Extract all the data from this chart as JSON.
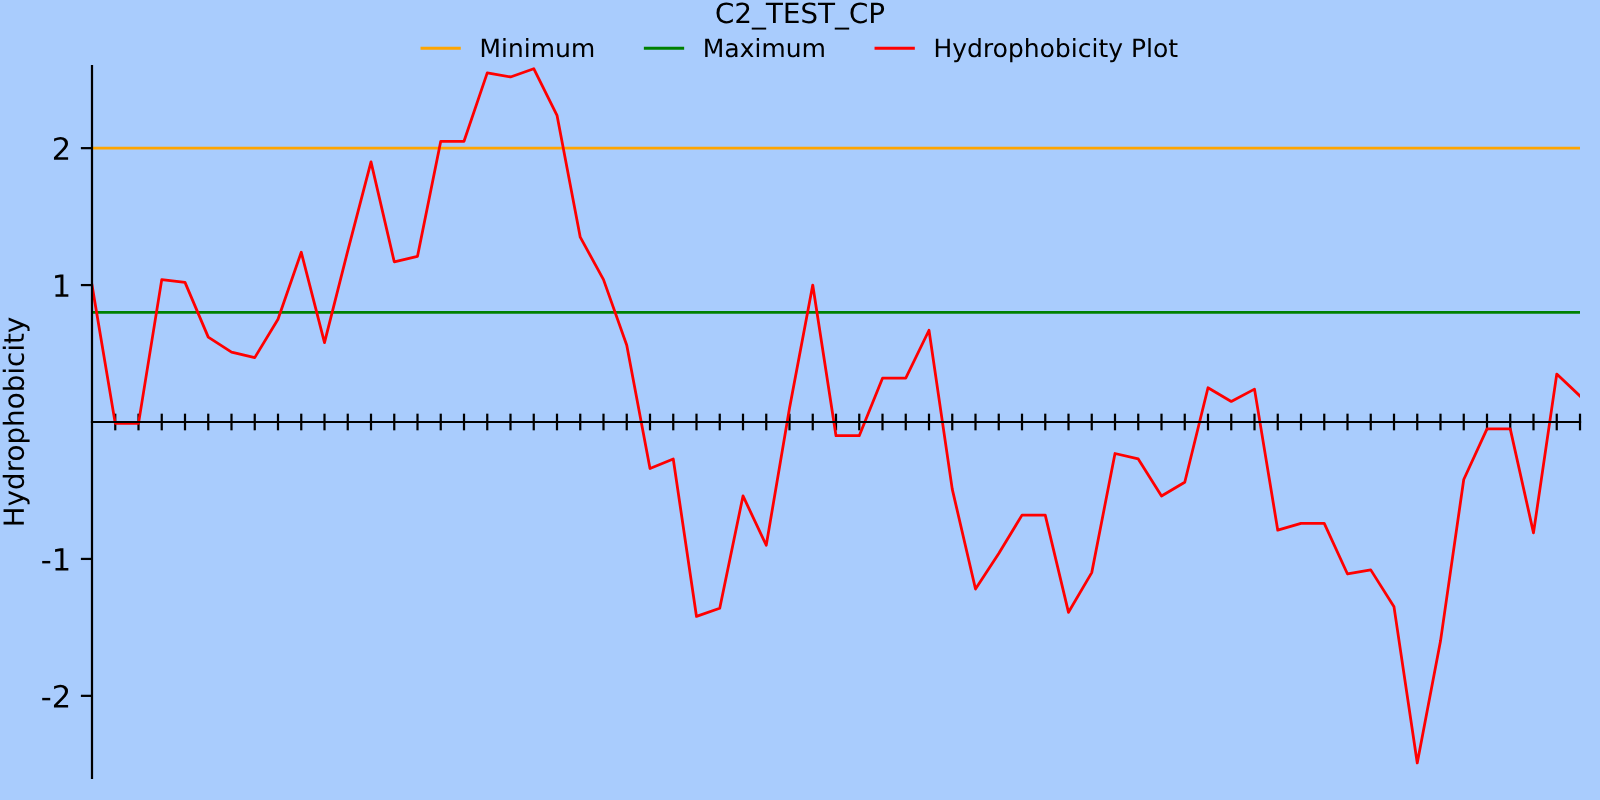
{
  "chart_data": {
    "type": "line",
    "title": "C2_TEST_CP",
    "ylabel": "Hydrophobicity",
    "categories": [
      null,
      null,
      null,
      null,
      null,
      null,
      null,
      null,
      null,
      null,
      null,
      null,
      null,
      null,
      null,
      null,
      null,
      null,
      null,
      null,
      null,
      null,
      null,
      null,
      null,
      null,
      null,
      null,
      null,
      null,
      null,
      null,
      null,
      null,
      null,
      null,
      null,
      null,
      null,
      null,
      null,
      null,
      null,
      null,
      null,
      null,
      null,
      null,
      null,
      null,
      null,
      null,
      null,
      null,
      null,
      null,
      null,
      null,
      null,
      null,
      null,
      null,
      null,
      null,
      null
    ],
    "series": [
      {
        "name": "Minimum",
        "color": "#ffa500",
        "values": [
          2,
          2,
          2,
          2,
          2,
          2,
          2,
          2,
          2,
          2,
          2,
          2,
          2,
          2,
          2,
          2,
          2,
          2,
          2,
          2,
          2,
          2,
          2,
          2,
          2,
          2,
          2,
          2,
          2,
          2,
          2,
          2,
          2,
          2,
          2,
          2,
          2,
          2,
          2,
          2,
          2,
          2,
          2,
          2,
          2,
          2,
          2,
          2,
          2,
          2,
          2,
          2,
          2,
          2,
          2,
          2,
          2,
          2,
          2,
          2,
          2,
          2,
          2,
          2,
          2
        ]
      },
      {
        "name": "Maximum",
        "color": "#008000",
        "values": [
          0.8,
          0.8,
          0.8,
          0.8,
          0.8,
          0.8,
          0.8,
          0.8,
          0.8,
          0.8,
          0.8,
          0.8,
          0.8,
          0.8,
          0.8,
          0.8,
          0.8,
          0.8,
          0.8,
          0.8,
          0.8,
          0.8,
          0.8,
          0.8,
          0.8,
          0.8,
          0.8,
          0.8,
          0.8,
          0.8,
          0.8,
          0.8,
          0.8,
          0.8,
          0.8,
          0.8,
          0.8,
          0.8,
          0.8,
          0.8,
          0.8,
          0.8,
          0.8,
          0.8,
          0.8,
          0.8,
          0.8,
          0.8,
          0.8,
          0.8,
          0.8,
          0.8,
          0.8,
          0.8,
          0.8,
          0.8,
          0.8,
          0.8,
          0.8,
          0.8,
          0.8,
          0.8,
          0.8,
          0.8,
          0.8
        ]
      },
      {
        "name": "Hydrophobicity Plot",
        "color": "#ff0000",
        "values": [
          1.0,
          -0.01,
          -0.01,
          1.04,
          1.02,
          0.62,
          0.51,
          0.47,
          0.75,
          1.24,
          0.58,
          1.25,
          1.9,
          1.17,
          1.21,
          2.05,
          2.05,
          2.55,
          2.52,
          2.58,
          2.24,
          1.35,
          1.04,
          0.56,
          -0.34,
          -0.27,
          -1.42,
          -1.36,
          -0.54,
          -0.9,
          0.1,
          1.0,
          -0.1,
          -0.1,
          0.32,
          0.32,
          0.67,
          -0.49,
          -1.22,
          -0.96,
          -0.68,
          -0.68,
          -1.39,
          -1.1,
          -0.23,
          -0.27,
          -0.54,
          -0.44,
          0.25,
          0.15,
          0.24,
          -0.79,
          -0.74,
          -0.74,
          -1.11,
          -1.08,
          -1.35,
          -2.49,
          -1.6,
          -0.42,
          -0.05,
          -0.05,
          -0.81,
          0.35,
          0.19
        ]
      }
    ],
    "ylim": [
      -2.6,
      2.6
    ],
    "yticks": [
      -2,
      -1,
      1,
      2
    ],
    "grid": false,
    "legend": "top",
    "marker": "none",
    "line_style": "solid"
  }
}
